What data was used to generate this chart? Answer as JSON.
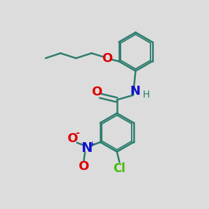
{
  "bg_color": "#dcdcdc",
  "bond_color": "#2d7d6e",
  "bond_width": 1.8,
  "atom_colors": {
    "O": "#dd0000",
    "N_blue": "#1111cc",
    "Cl": "#44bb00",
    "H": "#2d7d6e"
  },
  "font_size_atoms": 13,
  "font_size_small": 10,
  "font_size_cl": 12
}
